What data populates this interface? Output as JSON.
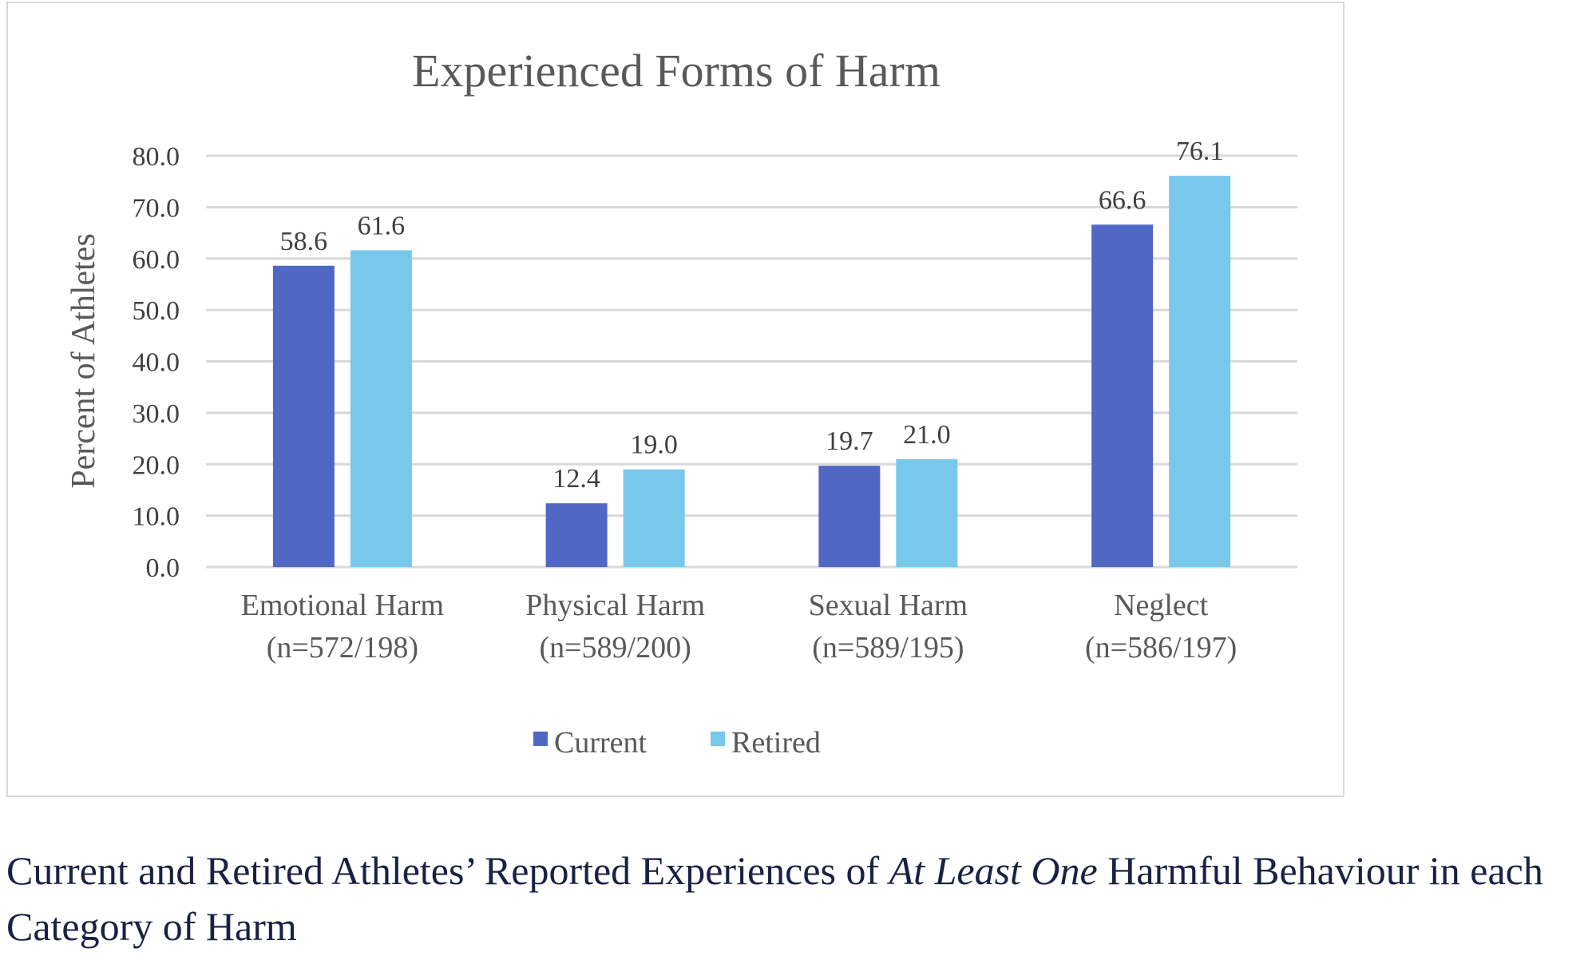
{
  "chart_data": {
    "type": "bar",
    "title": "Experienced Forms of Harm",
    "ylabel": "Percent of Athletes",
    "xlabel": "",
    "ylim": [
      0,
      80
    ],
    "yticks": [
      "0.0",
      "10.0",
      "20.0",
      "30.0",
      "40.0",
      "50.0",
      "60.0",
      "70.0",
      "80.0"
    ],
    "grid": true,
    "legend_position": "bottom",
    "categories": [
      {
        "name": "Emotional Harm",
        "n": "(n=572/198)"
      },
      {
        "name": "Physical Harm",
        "n": "(n=589/200)"
      },
      {
        "name": "Sexual Harm",
        "n": "(n=589/195)"
      },
      {
        "name": "Neglect",
        "n": "(n=586/197)"
      }
    ],
    "series": [
      {
        "name": "Current",
        "color": "#5068c4",
        "values": [
          58.6,
          12.4,
          19.7,
          66.6
        ],
        "labels": [
          "58.6",
          "12.4",
          "19.7",
          "66.6"
        ]
      },
      {
        "name": "Retired",
        "color": "#78c8ec",
        "values": [
          61.6,
          19.0,
          21.0,
          76.1
        ],
        "labels": [
          "61.6",
          "19.0",
          "21.0",
          "76.1"
        ]
      }
    ]
  },
  "caption": {
    "part1": "Current and Retired Athletes’ Reported Experiences of ",
    "emphasis": "At Least One",
    "part2": " Harmful Behaviour in each Category of Harm"
  }
}
